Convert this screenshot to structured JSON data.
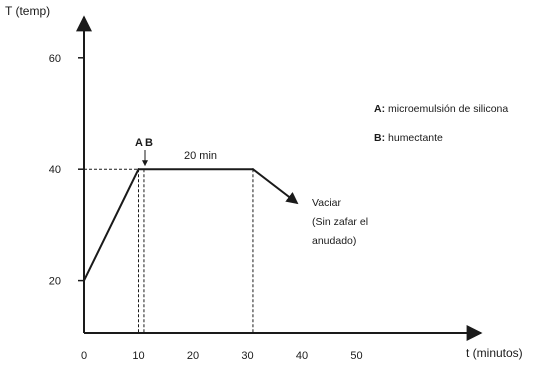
{
  "chart_data": {
    "type": "line",
    "ylabel": "T (temp)",
    "xlabel": "t (minutos)",
    "xlim": [
      0,
      70
    ],
    "ylim": [
      11,
      80
    ],
    "x_ticks": [
      0,
      10,
      20,
      30,
      40,
      50
    ],
    "y_ticks": [
      20,
      40,
      60
    ],
    "series": [
      {
        "x": [
          0,
          10,
          31,
          39
        ],
        "y": [
          20,
          40,
          40,
          34
        ]
      }
    ],
    "markers": [
      {
        "label": "A",
        "x": 10
      },
      {
        "label": "B",
        "x": 11
      }
    ],
    "hold_label": "20 min",
    "end_label": [
      "Vaciar",
      "(Sin zafar el",
      "anudado)"
    ],
    "notes": [
      {
        "key": "A:",
        "text": " microemulsión de silicona"
      },
      {
        "key": "B:",
        "text": " humectante"
      }
    ],
    "line_color": "#1a1a1a"
  }
}
